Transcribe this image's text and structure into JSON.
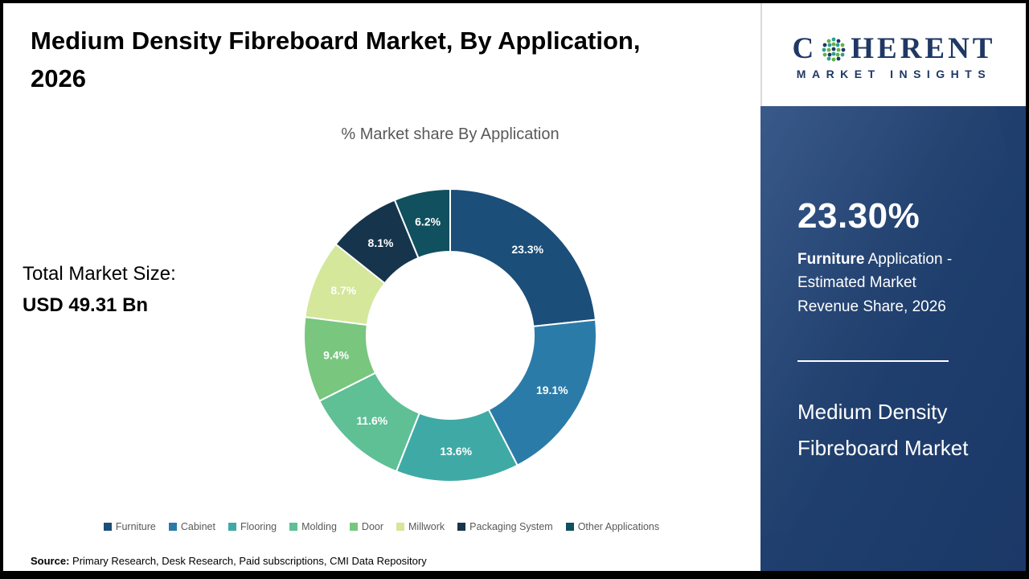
{
  "title": "Medium Density Fibreboard Market, By Application, 2026",
  "total_market": {
    "label": "Total Market Size:",
    "value": "USD 49.31 Bn"
  },
  "source": {
    "label": "Source:",
    "text": " Primary Research, Desk Research, Paid subscriptions, CMI Data Repository"
  },
  "logo": {
    "prefix": "C",
    "suffix": "HERENT",
    "tagline": "MARKET INSIGHTS"
  },
  "sidebar": {
    "stat_value": "23.30%",
    "stat_caption_bold": "Furniture",
    "stat_caption_rest": " Application - Estimated Market Revenue Share, 2026",
    "product_title": "Medium Density Fibreboard Market"
  },
  "chart_data": {
    "type": "pie",
    "subtype": "donut",
    "title": "% Market share By Application",
    "start_angle": 0,
    "direction": "clockwise",
    "categories": [
      "Furniture",
      "Cabinet",
      "Flooring",
      "Molding",
      "Door",
      "Millwork",
      "Packaging System",
      "Other Applications"
    ],
    "values": [
      23.3,
      19.1,
      13.6,
      11.6,
      9.4,
      8.7,
      8.1,
      6.2
    ],
    "labels": [
      "23.3%",
      "19.1%",
      "13.6%",
      "11.6%",
      "9.4%",
      "8.7%",
      "8.1%",
      "6.2%"
    ],
    "colors": [
      "#1b4e79",
      "#2b7ba8",
      "#3faaa5",
      "#5fbf95",
      "#79c67f",
      "#d4e79b",
      "#16354d",
      "#11505e"
    ],
    "legend_position": "bottom"
  }
}
